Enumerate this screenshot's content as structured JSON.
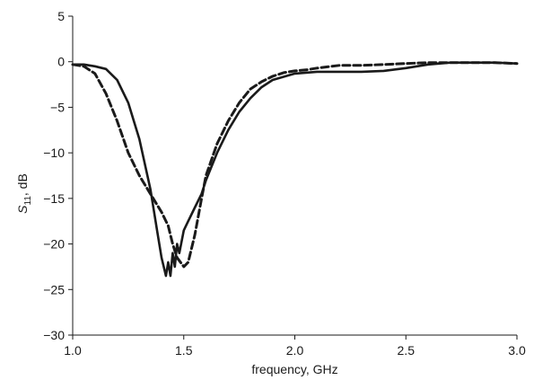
{
  "chart_data": {
    "type": "line",
    "title": "",
    "xlabel": "frequency, GHz",
    "ylabel_main": "S",
    "ylabel_sub": "11",
    "ylabel_rest": ", dB",
    "xlim": [
      1.0,
      3.0
    ],
    "ylim": [
      -30,
      5
    ],
    "x_ticks": [
      1.0,
      1.5,
      2.0,
      2.5,
      3.0
    ],
    "x_tick_labels": [
      "1.0",
      "1.5",
      "2.0",
      "2.5",
      "3.0"
    ],
    "y_ticks": [
      5,
      0,
      -5,
      -10,
      -15,
      -20,
      -25,
      -30
    ],
    "y_tick_labels": [
      "5",
      "0",
      "−5",
      "−10",
      "−15",
      "−20",
      "−25",
      "−30"
    ],
    "grid": false,
    "legend": false,
    "series": [
      {
        "style": "solid",
        "color": "#1a1a1a",
        "x": [
          1.0,
          1.05,
          1.1,
          1.15,
          1.2,
          1.25,
          1.3,
          1.35,
          1.38,
          1.4,
          1.42,
          1.43,
          1.44,
          1.45,
          1.46,
          1.47,
          1.48,
          1.5,
          1.52,
          1.55,
          1.58,
          1.6,
          1.65,
          1.7,
          1.75,
          1.8,
          1.85,
          1.9,
          2.0,
          2.1,
          2.2,
          2.3,
          2.4,
          2.5,
          2.6,
          2.7,
          2.8,
          2.9,
          3.0
        ],
        "y": [
          -0.3,
          -0.3,
          -0.5,
          -0.8,
          -2.0,
          -4.5,
          -8.5,
          -14.0,
          -18.5,
          -21.5,
          -23.5,
          -22.0,
          -23.5,
          -21.0,
          -22.5,
          -20.0,
          -21.0,
          -18.5,
          -17.5,
          -16.0,
          -14.5,
          -13.0,
          -10.0,
          -7.5,
          -5.5,
          -4.0,
          -2.8,
          -2.0,
          -1.3,
          -1.1,
          -1.1,
          -1.1,
          -1.0,
          -0.7,
          -0.3,
          -0.1,
          -0.1,
          -0.1,
          -0.2
        ]
      },
      {
        "style": "dashed",
        "color": "#1a1a1a",
        "x": [
          1.0,
          1.05,
          1.1,
          1.15,
          1.2,
          1.25,
          1.3,
          1.35,
          1.4,
          1.43,
          1.45,
          1.47,
          1.5,
          1.52,
          1.55,
          1.58,
          1.6,
          1.65,
          1.7,
          1.75,
          1.8,
          1.85,
          1.9,
          1.95,
          2.0,
          2.05,
          2.1,
          2.2,
          2.3,
          2.4,
          2.5,
          2.6,
          2.65,
          2.7,
          2.8,
          2.9,
          3.0
        ],
        "y": [
          -0.3,
          -0.5,
          -1.3,
          -3.5,
          -6.5,
          -10.0,
          -12.5,
          -14.5,
          -16.5,
          -18.0,
          -20.0,
          -21.5,
          -22.5,
          -22.0,
          -19.0,
          -15.0,
          -12.5,
          -9.0,
          -6.5,
          -4.5,
          -3.0,
          -2.2,
          -1.6,
          -1.2,
          -1.0,
          -0.9,
          -0.7,
          -0.4,
          -0.4,
          -0.3,
          -0.2,
          -0.1,
          -0.1,
          -0.1,
          -0.1,
          -0.1,
          -0.2
        ]
      }
    ]
  }
}
